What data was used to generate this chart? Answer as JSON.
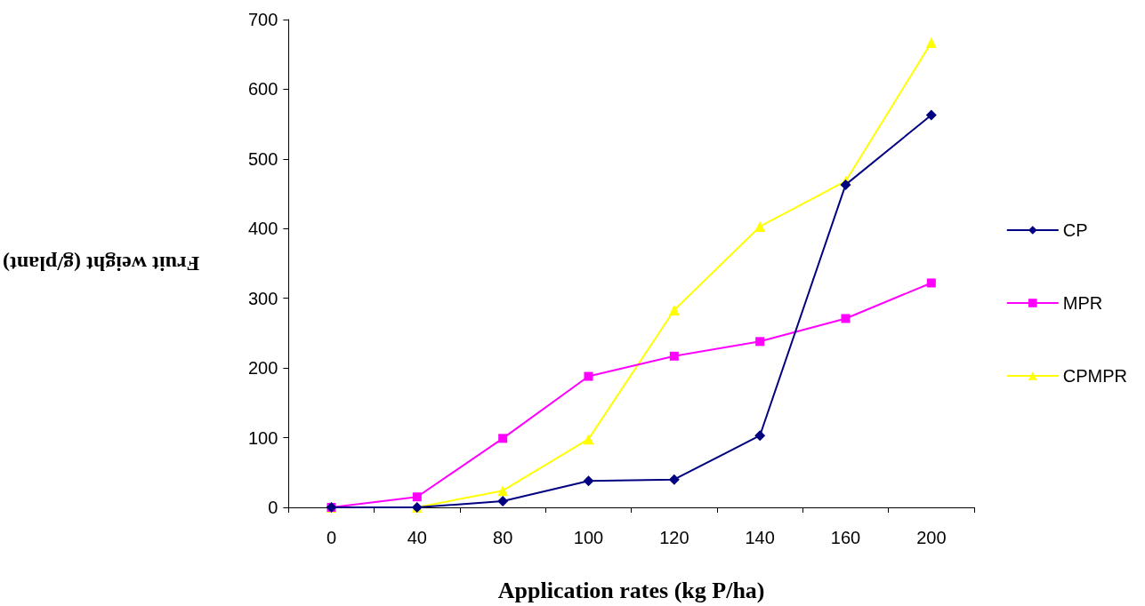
{
  "chart_data": {
    "type": "line",
    "xlabel": "Application rates (kg P/ha)",
    "ylabel": "Fruit weight (g/plant)",
    "categories": [
      "0",
      "40",
      "80",
      "100",
      "120",
      "140",
      "160",
      "200"
    ],
    "series": [
      {
        "name": "CP",
        "color": "#000080",
        "marker": "diamond",
        "values": [
          0,
          0,
          9,
          38,
          40,
          103,
          463,
          563
        ]
      },
      {
        "name": "MPR",
        "color": "#ff00ff",
        "marker": "square",
        "values": [
          0,
          15,
          99,
          188,
          217,
          238,
          271,
          322
        ]
      },
      {
        "name": "CPMPR",
        "color": "#ffff00",
        "marker": "triangle",
        "values": [
          0,
          0,
          24,
          98,
          283,
          403,
          468,
          667
        ]
      }
    ],
    "ylim": [
      0,
      700
    ],
    "yticks": [
      0,
      100,
      200,
      300,
      400,
      500,
      600,
      700
    ],
    "grid": false,
    "legend": "right"
  }
}
